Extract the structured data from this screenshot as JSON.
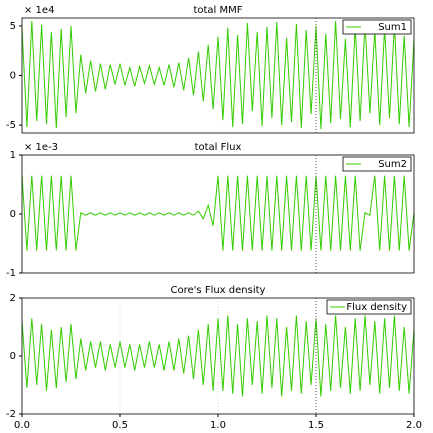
{
  "chart_data": [
    {
      "type": "line",
      "title": "total MMF",
      "exponent_label": "× 1e4",
      "legend": "upper right",
      "xlim": [
        0,
        2
      ],
      "ylim": [
        -5.8,
        5.8
      ],
      "yticks": [
        5,
        0,
        -5
      ],
      "cursor_x": 1.5,
      "x": [
        0,
        0.025,
        0.05,
        0.075,
        0.1,
        0.125,
        0.15,
        0.175,
        0.2,
        0.225,
        0.25,
        0.275,
        0.3,
        0.325,
        0.35,
        0.375,
        0.4,
        0.425,
        0.45,
        0.475,
        0.5,
        0.525,
        0.55,
        0.575,
        0.6,
        0.625,
        0.65,
        0.675,
        0.7,
        0.725,
        0.75,
        0.775,
        0.8,
        0.825,
        0.85,
        0.875,
        0.9,
        0.925,
        0.95,
        0.975,
        1,
        1.025,
        1.05,
        1.075,
        1.1,
        1.125,
        1.15,
        1.175,
        1.2,
        1.225,
        1.25,
        1.275,
        1.3,
        1.325,
        1.35,
        1.375,
        1.4,
        1.425,
        1.45,
        1.475,
        1.5,
        1.525,
        1.55,
        1.575,
        1.6,
        1.625,
        1.65,
        1.675,
        1.7,
        1.725,
        1.75,
        1.775,
        1.8,
        1.825,
        1.85,
        1.875,
        1.9,
        1.925,
        1.95,
        1.975,
        2
      ],
      "series": [
        {
          "name": "Sum1",
          "color": "#33cc00",
          "values": [
            4.8,
            -5.2,
            5.5,
            -4.6,
            5.1,
            -4.9,
            4.4,
            -5.3,
            4.7,
            -4.2,
            5.0,
            -3.8,
            2.1,
            -1.8,
            1.5,
            -1.6,
            1.2,
            -1.4,
            1.1,
            -0.9,
            1.2,
            -1.0,
            0.8,
            -1.1,
            0.9,
            -0.8,
            1.0,
            -0.9,
            0.8,
            -1.0,
            1.1,
            -1.2,
            1.3,
            -1.5,
            1.8,
            -2.0,
            2.4,
            -2.6,
            3.1,
            -3.4,
            3.9,
            -4.5,
            4.8,
            -5.2,
            4.1,
            -4.9,
            5.3,
            -3.6,
            4.4,
            -5.1,
            4.9,
            -4.3,
            5.4,
            -5.0,
            3.8,
            -4.7,
            5.2,
            -5.3,
            4.6,
            -3.9,
            5.0,
            -5.4,
            4.2,
            -4.8,
            5.5,
            -4.4,
            3.7,
            -5.2,
            4.9,
            -4.6,
            5.3,
            -3.8,
            4.5,
            -5.0,
            4.8,
            -4.3,
            5.1,
            -4.9,
            4.0,
            -5.2,
            3.6
          ]
        }
      ]
    },
    {
      "type": "line",
      "title": "total Flux",
      "exponent_label": "× 1e-3",
      "legend": "upper right",
      "xlim": [
        0,
        2
      ],
      "ylim": [
        -1,
        1
      ],
      "yticks": [
        1,
        0,
        -1
      ],
      "cursor_x": 1.5,
      "x": [
        0,
        0.025,
        0.05,
        0.075,
        0.1,
        0.125,
        0.15,
        0.175,
        0.2,
        0.225,
        0.25,
        0.275,
        0.3,
        0.325,
        0.35,
        0.375,
        0.4,
        0.425,
        0.45,
        0.475,
        0.5,
        0.525,
        0.55,
        0.575,
        0.6,
        0.625,
        0.65,
        0.675,
        0.7,
        0.725,
        0.75,
        0.775,
        0.8,
        0.825,
        0.85,
        0.875,
        0.9,
        0.925,
        0.95,
        0.975,
        1,
        1.025,
        1.05,
        1.075,
        1.1,
        1.125,
        1.15,
        1.175,
        1.2,
        1.225,
        1.25,
        1.275,
        1.3,
        1.325,
        1.35,
        1.375,
        1.4,
        1.425,
        1.45,
        1.475,
        1.5,
        1.525,
        1.55,
        1.575,
        1.6,
        1.625,
        1.65,
        1.675,
        1.7,
        1.725,
        1.75,
        1.775,
        1.8,
        1.825,
        1.85,
        1.875,
        1.9,
        1.925,
        1.95,
        1.975,
        2
      ],
      "series": [
        {
          "name": "Sum2",
          "color": "#33cc00",
          "values": [
            0.65,
            -0.62,
            0.65,
            -0.62,
            0.65,
            -0.62,
            0.65,
            -0.62,
            0.65,
            -0.62,
            0.65,
            -0.62,
            0.02,
            -0.02,
            0.02,
            -0.02,
            0.02,
            -0.02,
            0.02,
            -0.02,
            0.02,
            -0.02,
            0.02,
            -0.02,
            0.02,
            -0.02,
            0.02,
            -0.02,
            0.02,
            -0.02,
            0.02,
            -0.02,
            0.02,
            -0.02,
            0.02,
            -0.02,
            0.05,
            -0.08,
            0.15,
            -0.2,
            0.65,
            -0.62,
            0.65,
            -0.62,
            0.65,
            -0.62,
            0.65,
            -0.62,
            0.65,
            -0.62,
            0.65,
            -0.62,
            0.65,
            -0.62,
            0.65,
            -0.62,
            0.65,
            -0.62,
            0.65,
            -0.62,
            0.65,
            -0.62,
            0.65,
            -0.62,
            0.65,
            -0.62,
            0.65,
            -0.62,
            0.65,
            -0.62,
            0.02,
            -0.02,
            0.65,
            -0.62,
            0.65,
            -0.62,
            0.65,
            -0.62,
            0.65,
            -0.62,
            0.02
          ]
        }
      ]
    },
    {
      "type": "line",
      "title": "Core's Flux density",
      "legend": "upper right",
      "xlim": [
        0,
        2
      ],
      "ylim": [
        -2,
        2
      ],
      "yticks": [
        2,
        0,
        -2
      ],
      "cursor_x": 1.5,
      "xticks": [
        {
          "value": 0,
          "label": "0.0"
        },
        {
          "value": 0.5,
          "label": "0.5"
        },
        {
          "value": 1,
          "label": "1.0"
        },
        {
          "value": 1.5,
          "label": "1.5"
        },
        {
          "value": 2,
          "label": "2.0"
        }
      ],
      "x": [
        0,
        0.025,
        0.05,
        0.075,
        0.1,
        0.125,
        0.15,
        0.175,
        0.2,
        0.225,
        0.25,
        0.275,
        0.3,
        0.325,
        0.35,
        0.375,
        0.4,
        0.425,
        0.45,
        0.475,
        0.5,
        0.525,
        0.55,
        0.575,
        0.6,
        0.625,
        0.65,
        0.675,
        0.7,
        0.725,
        0.75,
        0.775,
        0.8,
        0.825,
        0.85,
        0.875,
        0.9,
        0.925,
        0.95,
        0.975,
        1,
        1.025,
        1.05,
        1.075,
        1.1,
        1.125,
        1.15,
        1.175,
        1.2,
        1.225,
        1.25,
        1.275,
        1.3,
        1.325,
        1.35,
        1.375,
        1.4,
        1.425,
        1.45,
        1.475,
        1.5,
        1.525,
        1.55,
        1.575,
        1.6,
        1.625,
        1.65,
        1.675,
        1.7,
        1.725,
        1.75,
        1.775,
        1.8,
        1.825,
        1.85,
        1.875,
        1.9,
        1.925,
        1.95,
        1.975,
        2
      ],
      "series": [
        {
          "name": "Flux density",
          "color": "#33cc00",
          "values": [
            1.2,
            -1.1,
            1.3,
            -1.0,
            1.1,
            -1.2,
            0.9,
            -1.1,
            1.0,
            -0.9,
            1.1,
            -0.8,
            0.6,
            -0.5,
            0.5,
            -0.4,
            0.5,
            -0.5,
            0.4,
            -0.4,
            0.5,
            -0.4,
            0.4,
            -0.5,
            0.4,
            -0.4,
            0.5,
            -0.4,
            0.4,
            -0.5,
            0.5,
            -0.5,
            0.6,
            -0.6,
            0.7,
            -0.8,
            0.9,
            -1.0,
            1.1,
            -1.2,
            1.3,
            -1.2,
            1.4,
            -1.3,
            1.1,
            -1.4,
            1.3,
            -1.0,
            1.2,
            -1.3,
            1.4,
            -1.1,
            1.3,
            -1.4,
            1.0,
            -1.2,
            1.4,
            -1.3,
            1.2,
            -1.0,
            1.3,
            -1.4,
            1.1,
            -1.2,
            1.4,
            -1.1,
            1.0,
            -1.3,
            1.3,
            -1.2,
            1.4,
            -1.0,
            1.2,
            -1.3,
            1.3,
            -1.1,
            1.4,
            -1.2,
            1.0,
            -1.3,
            0.9
          ]
        }
      ]
    }
  ]
}
